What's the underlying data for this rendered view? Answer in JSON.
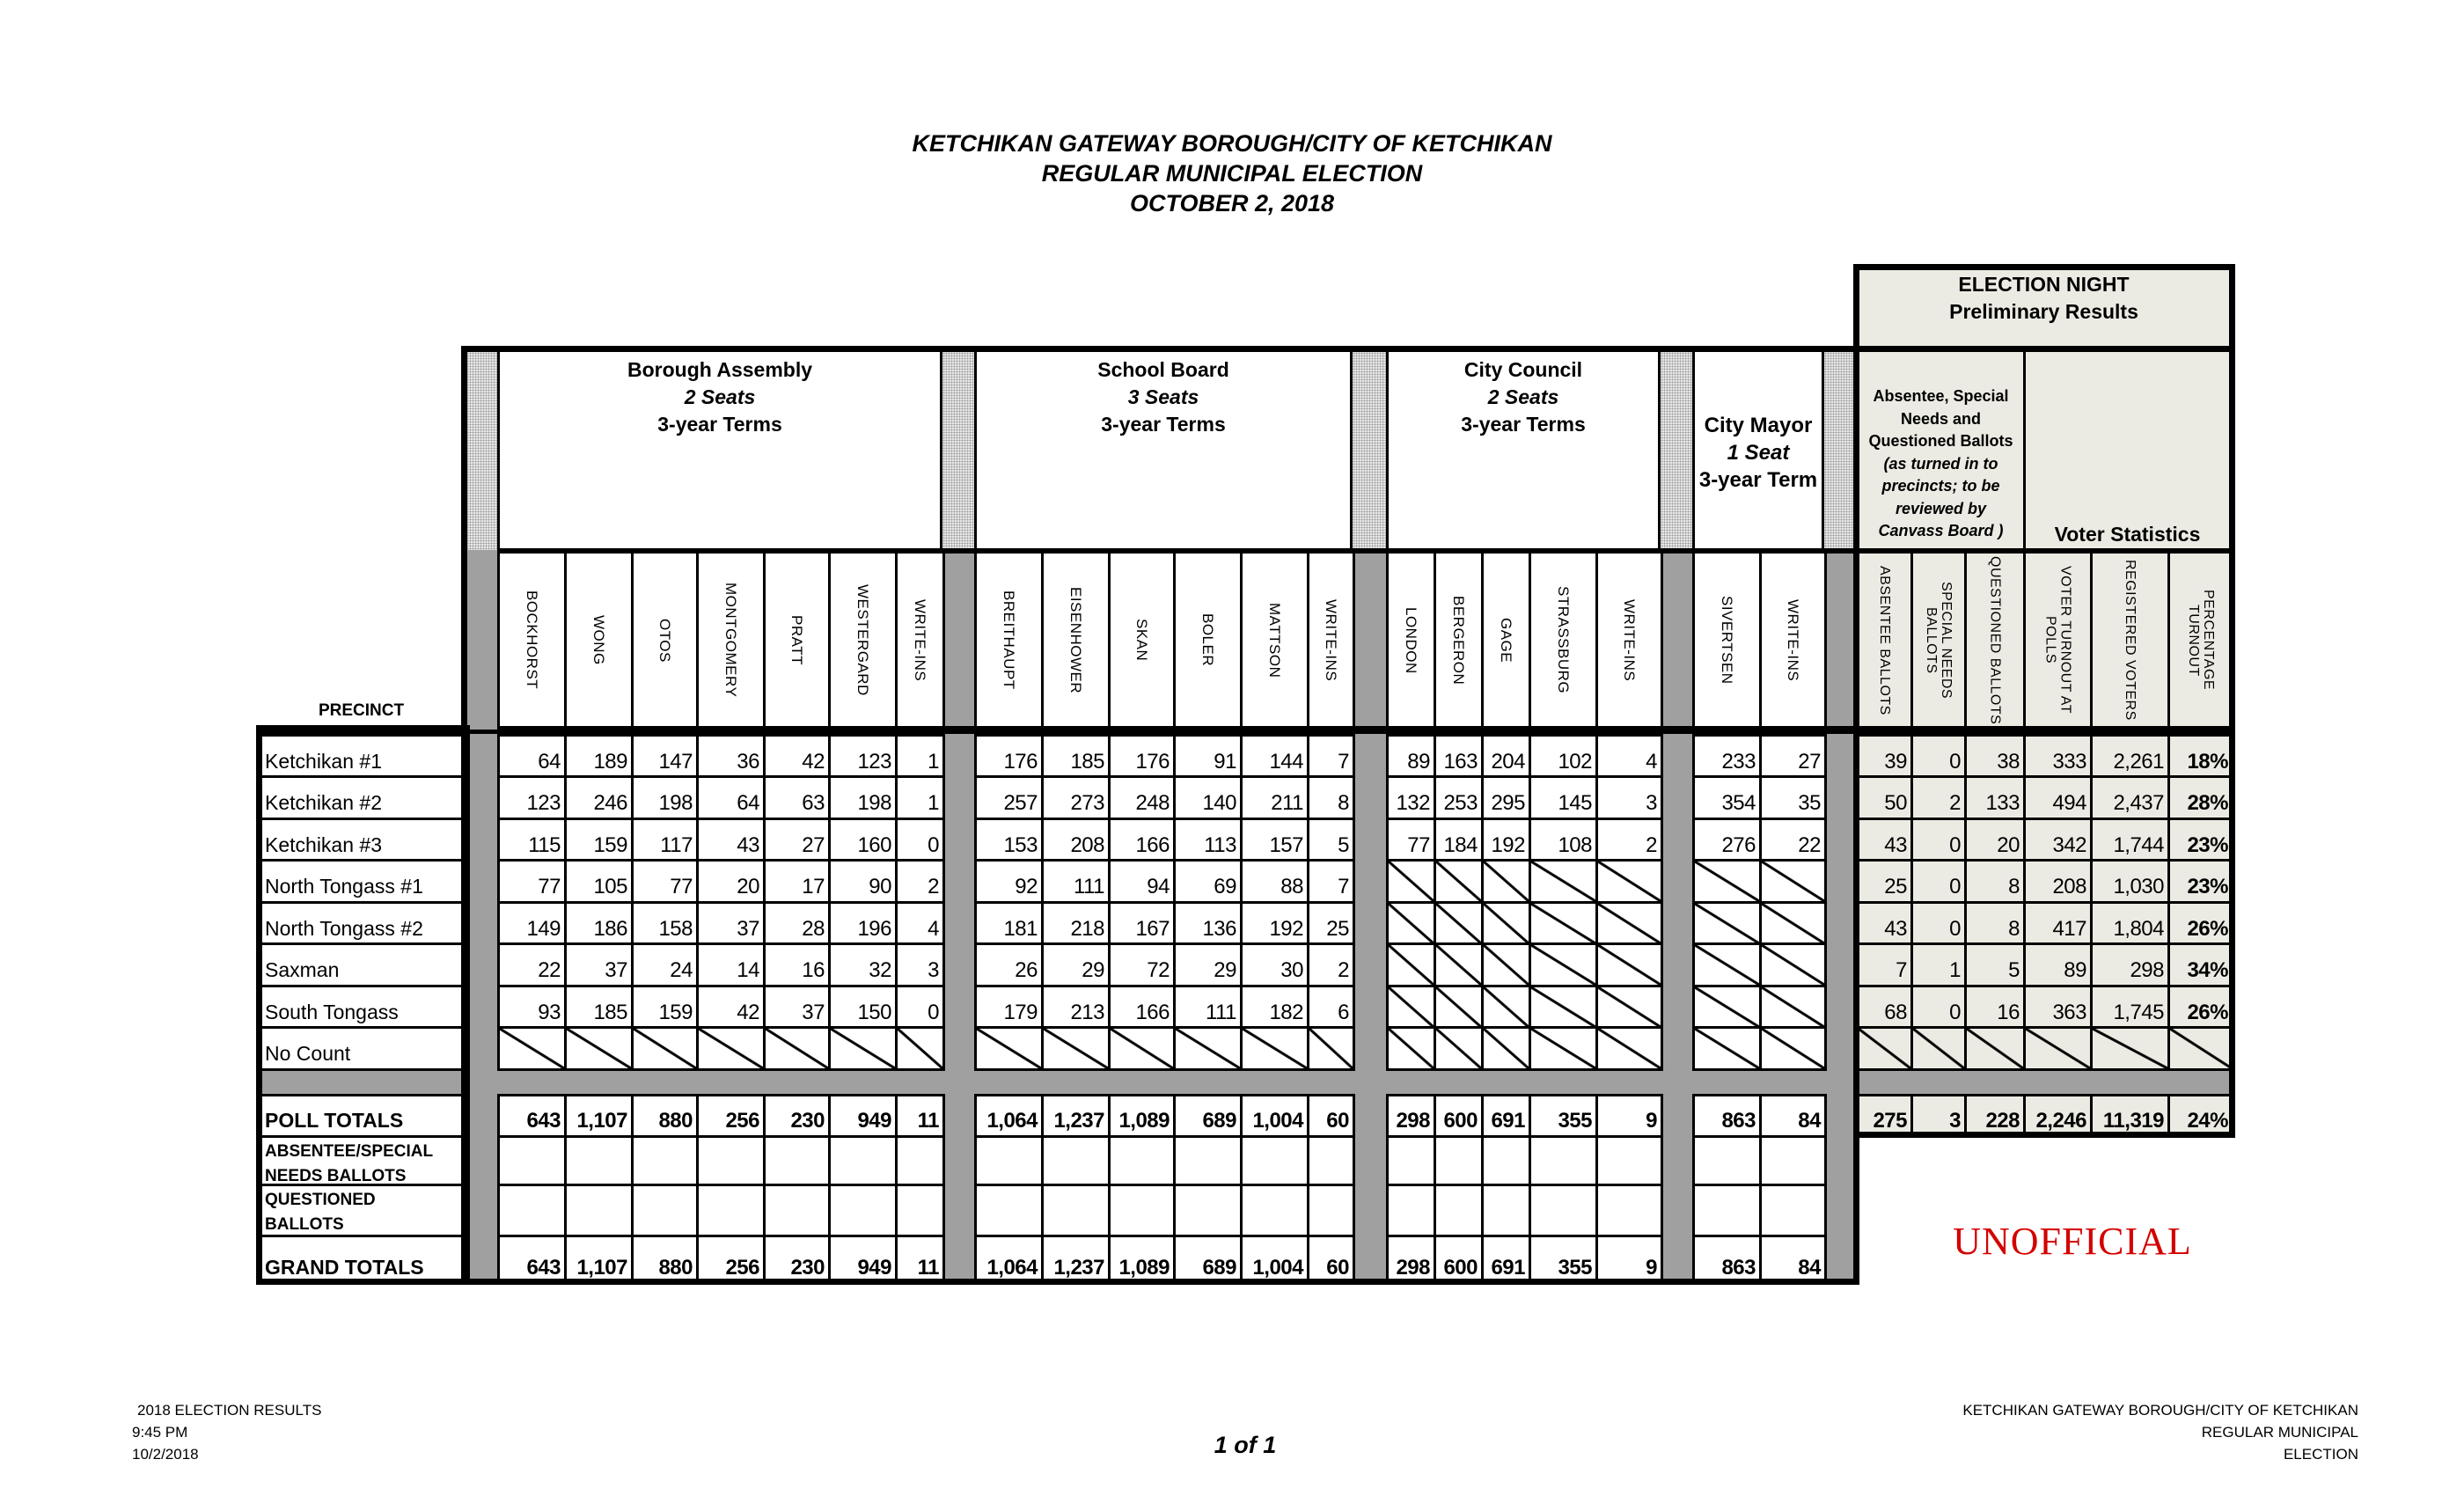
{
  "header": {
    "title_lines": [
      "KETCHIKAN GATEWAY BOROUGH/CITY OF KETCHIKAN",
      "REGULAR MUNICIPAL ELECTION",
      "OCTOBER 2, 2018"
    ]
  },
  "election_night": {
    "line1": "ELECTION NIGHT",
    "line2": "Preliminary Results"
  },
  "groups": [
    {
      "title": "Borough Assembly",
      "seats": "2 Seats",
      "terms": "3-year Terms",
      "candidates": [
        "BOCKHORST",
        "WONG",
        "OTOS",
        "MONTGOMERY",
        "PRATT",
        "WESTERGARD",
        "WRITE-INS"
      ]
    },
    {
      "title": "School Board",
      "seats": "3 Seats",
      "terms": "3-year Terms",
      "candidates": [
        "BREITHAUPT",
        "EISENHOWER",
        "SKAN",
        "BOLER",
        "MATTSON",
        "WRITE-INS"
      ]
    },
    {
      "title": "City Council",
      "seats": "2 Seats",
      "terms": "3-year Terms",
      "candidates": [
        "LONDON",
        "BERGERON",
        "GAGE",
        "STRASSBURG",
        "WRITE-INS"
      ]
    },
    {
      "title": "City Mayor",
      "seats": "1 Seat",
      "terms": "3-year Term",
      "candidates": [
        "SIVERTSEN",
        "WRITE-INS"
      ]
    }
  ],
  "stats_header": {
    "ballots_note_lines": [
      "Absentee, Special",
      "Needs and",
      "Questioned Ballots"
    ],
    "ballots_note_italic": [
      "(as turned in to",
      "precincts; to be",
      "reviewed by",
      "Canvass Board )"
    ],
    "voter_statistics": "Voter Statistics",
    "columns": [
      "ABSENTEE BALLOTS",
      "SPECIAL NEEDS BALLOTS",
      "QUESTIONED BALLOTS",
      "VOTER TURNOUT AT POLLS",
      "REGISTERED VOTERS",
      "PERCENTAGE TURNOUT"
    ]
  },
  "precinct_label": "PRECINCT",
  "precincts": [
    {
      "name": "Ketchikan #1",
      "values": [
        "64",
        "189",
        "147",
        "36",
        "42",
        "123",
        "1",
        "176",
        "185",
        "176",
        "91",
        "144",
        "7",
        "89",
        "163",
        "204",
        "102",
        "4",
        "233",
        "27",
        "39",
        "0",
        "38",
        "333",
        "2,261",
        "18%"
      ]
    },
    {
      "name": "Ketchikan #2",
      "values": [
        "123",
        "246",
        "198",
        "64",
        "63",
        "198",
        "1",
        "257",
        "273",
        "248",
        "140",
        "211",
        "8",
        "132",
        "253",
        "295",
        "145",
        "3",
        "354",
        "35",
        "50",
        "2",
        "133",
        "494",
        "2,437",
        "28%"
      ]
    },
    {
      "name": "Ketchikan #3",
      "values": [
        "115",
        "159",
        "117",
        "43",
        "27",
        "160",
        "0",
        "153",
        "208",
        "166",
        "113",
        "157",
        "5",
        "77",
        "184",
        "192",
        "108",
        "2",
        "276",
        "22",
        "43",
        "0",
        "20",
        "342",
        "1,744",
        "23%"
      ]
    },
    {
      "name": "North Tongass #1",
      "values": [
        "77",
        "105",
        "77",
        "20",
        "17",
        "90",
        "2",
        "92",
        "111",
        "94",
        "69",
        "88",
        "7",
        null,
        null,
        null,
        null,
        null,
        null,
        null,
        "25",
        "0",
        "8",
        "208",
        "1,030",
        "23%"
      ]
    },
    {
      "name": "North Tongass #2",
      "values": [
        "149",
        "186",
        "158",
        "37",
        "28",
        "196",
        "4",
        "181",
        "218",
        "167",
        "136",
        "192",
        "25",
        null,
        null,
        null,
        null,
        null,
        null,
        null,
        "43",
        "0",
        "8",
        "417",
        "1,804",
        "26%"
      ]
    },
    {
      "name": "Saxman",
      "values": [
        "22",
        "37",
        "24",
        "14",
        "16",
        "32",
        "3",
        "26",
        "29",
        "72",
        "29",
        "30",
        "2",
        null,
        null,
        null,
        null,
        null,
        null,
        null,
        "7",
        "1",
        "5",
        "89",
        "298",
        "34%"
      ]
    },
    {
      "name": "South Tongass",
      "values": [
        "93",
        "185",
        "159",
        "42",
        "37",
        "150",
        "0",
        "179",
        "213",
        "166",
        "111",
        "182",
        "6",
        null,
        null,
        null,
        null,
        null,
        null,
        null,
        "68",
        "0",
        "16",
        "363",
        "1,745",
        "26%"
      ]
    },
    {
      "name": "No Count",
      "values": [
        null,
        null,
        null,
        null,
        null,
        null,
        null,
        null,
        null,
        null,
        null,
        null,
        null,
        null,
        null,
        null,
        null,
        null,
        null,
        null,
        null,
        null,
        null,
        null,
        null,
        null
      ]
    }
  ],
  "poll_totals": {
    "label": "POLL TOTALS",
    "values": [
      "643",
      "1,107",
      "880",
      "256",
      "230",
      "949",
      "11",
      "1,064",
      "1,237",
      "1,089",
      "689",
      "1,004",
      "60",
      "298",
      "600",
      "691",
      "355",
      "9",
      "863",
      "84",
      "275",
      "3",
      "228",
      "2,246",
      "11,319",
      "24%"
    ]
  },
  "absentee_row": {
    "label_lines": [
      "ABSENTEE/SPECIAL",
      "NEEDS BALLOTS"
    ]
  },
  "questioned_row": {
    "label_lines": [
      "QUESTIONED",
      "BALLOTS"
    ]
  },
  "grand_totals": {
    "label": "GRAND TOTALS",
    "values": [
      "643",
      "1,107",
      "880",
      "256",
      "230",
      "949",
      "11",
      "1,064",
      "1,237",
      "1,089",
      "689",
      "1,004",
      "60",
      "298",
      "600",
      "691",
      "355",
      "9",
      "863",
      "84"
    ]
  },
  "stamp": "UNOFFICIAL",
  "footer": {
    "left_lines": [
      "2018 ELECTION RESULTS",
      "9:45 PM",
      "10/2/2018"
    ],
    "page": "1 of 1",
    "right_lines": [
      "KETCHIKAN GATEWAY BOROUGH/CITY OF KETCHIKAN",
      "REGULAR MUNICIPAL",
      "ELECTION"
    ]
  },
  "colors": {
    "stats_background": "#ecebe3",
    "separator_gray": "#a0a0a0",
    "stamp_red": "#d40000"
  }
}
